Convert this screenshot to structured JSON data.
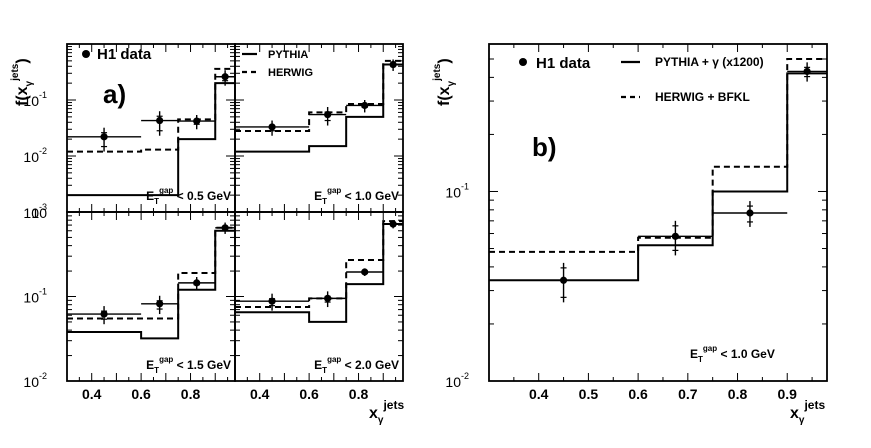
{
  "chart_data": [
    {
      "type": "line",
      "step": true,
      "panel_label": "a)",
      "cut_label_main": "E",
      "cut_label_sub": "T",
      "cut_label_sup": "gap",
      "cut_label_rest": " < 0.5 GeV",
      "ylabel": "f(x",
      "ylabel_sub": "γ",
      "ylabel_sup": "jets",
      "ylabel_close": ")",
      "yscale": "log",
      "ylim": [
        0.001,
        1.0
      ],
      "y_ticks": [
        {
          "label": "10",
          "exp": "-1",
          "value": 0.1
        },
        {
          "label": "10",
          "exp": "-2",
          "value": 0.01
        },
        {
          "label": "10",
          "exp": "-3",
          "value": 0.001
        }
      ],
      "xlim": [
        0.3,
        0.98
      ],
      "bin_edges": [
        0.3,
        0.6,
        0.75,
        0.9,
        0.98
      ],
      "legend": [
        "H1 data"
      ],
      "series": [
        {
          "name": "H1 data",
          "x": [
            0.45,
            0.675,
            0.825,
            0.94
          ],
          "y": [
            0.022,
            0.043,
            0.042,
            0.26
          ],
          "xerr": [
            0.15,
            0.075,
            0.075,
            0.04
          ],
          "yerr": [
            0.01,
            0.02,
            0.012,
            0.08
          ]
        },
        {
          "name": "PYTHIA",
          "values": [
            0.002,
            0.002,
            0.02,
            0.2
          ]
        },
        {
          "name": "HERWIG",
          "values": [
            0.012,
            0.013,
            0.045,
            0.36
          ]
        }
      ]
    },
    {
      "type": "line",
      "step": true,
      "cut_label_main": "E",
      "cut_label_sub": "T",
      "cut_label_sup": "gap",
      "cut_label_rest": " < 1.0 GeV",
      "yscale": "log",
      "ylim": [
        0.001,
        1.0
      ],
      "xlim": [
        0.3,
        0.98
      ],
      "bin_edges": [
        0.3,
        0.6,
        0.75,
        0.9,
        0.98
      ],
      "legend": [
        "PYTHIA",
        "HERWIG"
      ],
      "series": [
        {
          "name": "H1 data",
          "x": [
            0.45,
            0.675,
            0.825,
            0.94
          ],
          "y": [
            0.033,
            0.055,
            0.08,
            0.43
          ],
          "xerr": [
            0.15,
            0.075,
            0.075,
            0.04
          ],
          "yerr": [
            0.01,
            0.02,
            0.02,
            0.1
          ]
        },
        {
          "name": "PYTHIA",
          "values": [
            0.012,
            0.015,
            0.05,
            0.43
          ]
        },
        {
          "name": "HERWIG",
          "values": [
            0.028,
            0.06,
            0.085,
            0.5
          ]
        }
      ]
    },
    {
      "type": "line",
      "step": true,
      "cut_label_main": "E",
      "cut_label_sub": "T",
      "cut_label_sup": "gap",
      "cut_label_rest": " < 1.5 GeV",
      "yscale": "log",
      "ylim": [
        0.01,
        1.0
      ],
      "y_ticks": [
        {
          "label": "10",
          "exp": "",
          "value": 1.0
        },
        {
          "label": "10",
          "exp": "-1",
          "value": 0.1
        },
        {
          "label": "10",
          "exp": "-2",
          "value": 0.01
        }
      ],
      "xlim": [
        0.3,
        0.98
      ],
      "x_ticks": [
        "0.4",
        "0.6",
        "0.8"
      ],
      "x_tick_values": [
        0.4,
        0.6,
        0.8
      ],
      "bin_edges": [
        0.3,
        0.6,
        0.75,
        0.9,
        0.98
      ],
      "series": [
        {
          "name": "H1 data",
          "x": [
            0.45,
            0.675,
            0.825,
            0.94
          ],
          "y": [
            0.062,
            0.082,
            0.145,
            0.65
          ],
          "xerr": [
            0.15,
            0.075,
            0.075,
            0.04
          ],
          "yerr": [
            0.015,
            0.02,
            0.025,
            0.1
          ]
        },
        {
          "name": "PYTHIA",
          "values": [
            0.038,
            0.032,
            0.12,
            0.6
          ]
        },
        {
          "name": "HERWIG",
          "values": [
            0.055,
            0.055,
            0.19,
            0.65
          ]
        }
      ]
    },
    {
      "type": "line",
      "step": true,
      "cut_label_main": "E",
      "cut_label_sub": "T",
      "cut_label_sup": "gap",
      "cut_label_rest": " < 2.0 GeV",
      "yscale": "log",
      "ylim": [
        0.01,
        1.0
      ],
      "xlim": [
        0.3,
        0.98
      ],
      "x_ticks": [
        "0.4",
        "0.6",
        "0.8"
      ],
      "x_tick_values": [
        0.4,
        0.6,
        0.8
      ],
      "xlabel": "x",
      "xlabel_sub": "γ",
      "xlabel_sup": "jets",
      "bin_edges": [
        0.3,
        0.6,
        0.75,
        0.9,
        0.98
      ],
      "series": [
        {
          "name": "H1 data",
          "x": [
            0.45,
            0.675,
            0.825,
            0.94
          ],
          "y": [
            0.088,
            0.095,
            0.195,
            0.72
          ],
          "xerr": [
            0.15,
            0.075,
            0.075,
            0.04
          ],
          "yerr": [
            0.02,
            0.02,
            0.02,
            0.08
          ]
        },
        {
          "name": "PYTHIA",
          "values": [
            0.065,
            0.05,
            0.14,
            0.72
          ]
        },
        {
          "name": "HERWIG",
          "values": [
            0.075,
            0.095,
            0.27,
            0.78
          ]
        }
      ]
    },
    {
      "type": "line",
      "step": true,
      "panel_label": "b)",
      "cut_label_main": "E",
      "cut_label_sub": "T",
      "cut_label_sup": "gap",
      "cut_label_rest": " < 1.0 GeV",
      "ylabel": "f(x",
      "ylabel_sub": "γ",
      "ylabel_sup": "jets",
      "ylabel_close": ")",
      "xlabel": "x",
      "xlabel_sub": "γ",
      "xlabel_sup": "jets",
      "yscale": "log",
      "ylim": [
        0.01,
        0.6
      ],
      "y_ticks": [
        {
          "label": "10",
          "exp": "-1",
          "value": 0.1
        },
        {
          "label": "10",
          "exp": "-2",
          "value": 0.01
        }
      ],
      "xlim": [
        0.3,
        0.98
      ],
      "x_ticks": [
        "0.4",
        "0.5",
        "0.6",
        "0.7",
        "0.8",
        "0.9"
      ],
      "x_tick_values": [
        0.4,
        0.5,
        0.6,
        0.7,
        0.8,
        0.9
      ],
      "bin_edges": [
        0.3,
        0.6,
        0.75,
        0.9,
        0.98
      ],
      "legend": [
        "H1 data",
        "PYTHIA + γ (x1200)",
        "HERWIG + BFKL"
      ],
      "series": [
        {
          "name": "H1 data",
          "x": [
            0.45,
            0.675,
            0.825,
            0.94
          ],
          "y": [
            0.034,
            0.058,
            0.077,
            0.43
          ],
          "xerr": [
            0.15,
            0.075,
            0.075,
            0.04
          ],
          "yerr": [
            0.008,
            0.012,
            0.012,
            0.05
          ]
        },
        {
          "name": "PYTHIA + γ (x1200)",
          "values": [
            0.034,
            0.052,
            0.1,
            0.42
          ]
        },
        {
          "name": "HERWIG + BFKL",
          "values": [
            0.048,
            0.057,
            0.135,
            0.5
          ]
        }
      ]
    }
  ]
}
